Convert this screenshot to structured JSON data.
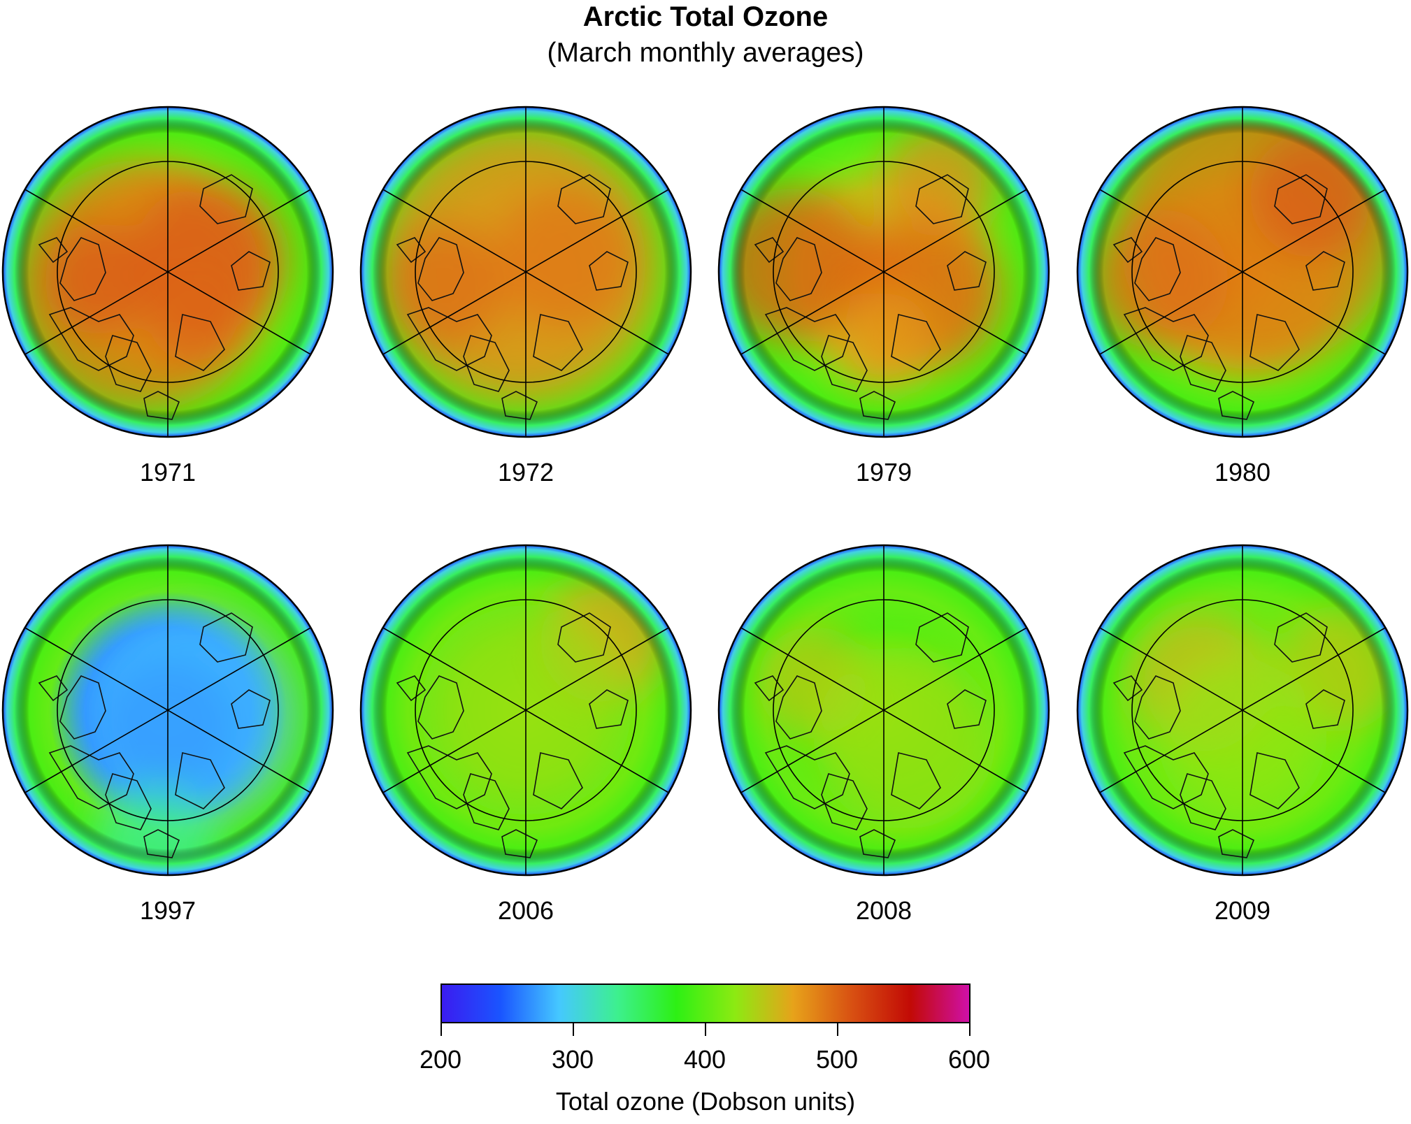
{
  "chart_data": {
    "type": "heatmap",
    "title": "Arctic Total Ozone",
    "subtitle": "(March monthly averages)",
    "projection": "north polar orthographic maps with coastlines",
    "panels": [
      {
        "year": "1971",
        "pattern": "broad high ozone over the polar cap",
        "polar_ozone_du": 470
      },
      {
        "year": "1972",
        "pattern": "broad high ozone over the polar cap",
        "polar_ozone_du": 460
      },
      {
        "year": "1979",
        "pattern": "high ozone with two maxima",
        "polar_ozone_du": 470
      },
      {
        "year": "1980",
        "pattern": "high ozone shifted toward Siberia",
        "polar_ozone_du": 470
      },
      {
        "year": "1997",
        "pattern": "deep low over the pole",
        "polar_ozone_du": 290
      },
      {
        "year": "2006",
        "pattern": "moderate ozone with maximum near Siberia",
        "polar_ozone_du": 420
      },
      {
        "year": "2008",
        "pattern": "moderate ozone",
        "polar_ozone_du": 420
      },
      {
        "year": "2009",
        "pattern": "moderate ozone with maximum near Canadian archipelago",
        "polar_ozone_du": 430
      }
    ],
    "colorbar": {
      "label": "Total ozone (Dobson units)",
      "min": 200,
      "max": 600,
      "ticks": [
        200,
        300,
        400,
        500,
        600
      ],
      "colors": [
        "#3b1cf0",
        "#1a55ff",
        "#45c8ff",
        "#3df08e",
        "#2df014",
        "#8cea12",
        "#e7a21a",
        "#d85012",
        "#c20a05",
        "#cf10a8"
      ]
    }
  }
}
